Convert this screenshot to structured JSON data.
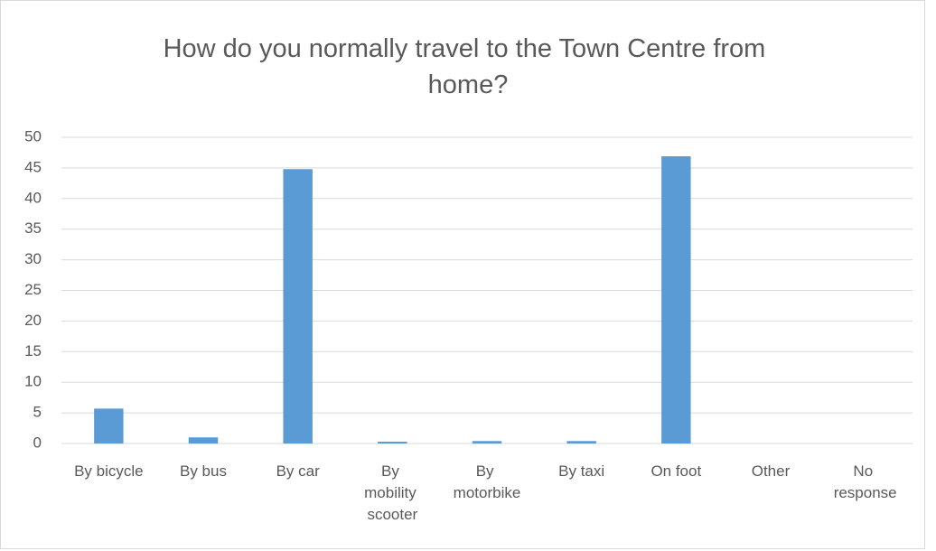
{
  "chart_data": {
    "type": "bar",
    "title": "How do you normally travel to the Town Centre from home?",
    "categories": [
      "By bicycle",
      "By bus",
      "By car",
      "By mobility scooter",
      "By motorbike",
      "By taxi",
      "On foot",
      "Other",
      "No response"
    ],
    "values": [
      5.7,
      1,
      44.8,
      0.3,
      0.4,
      0.4,
      46.9,
      0,
      0
    ],
    "color": "#5b9bd5",
    "ylim": [
      0,
      50
    ],
    "yticks": [
      0,
      5,
      10,
      15,
      20,
      25,
      30,
      35,
      40,
      45,
      50
    ],
    "grid": true
  }
}
